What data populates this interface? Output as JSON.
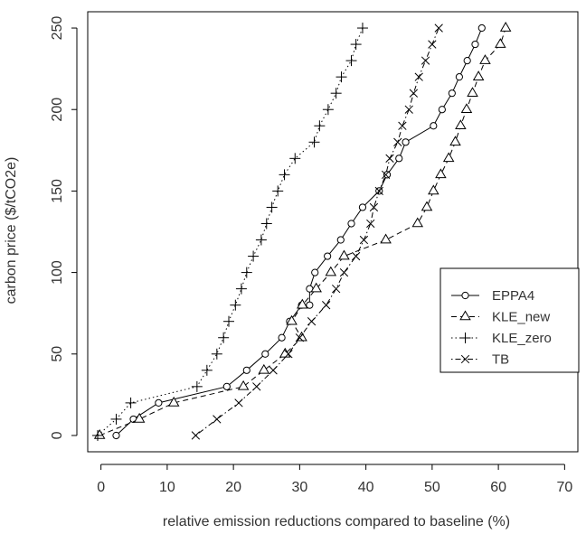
{
  "chart_data": {
    "type": "line",
    "title": "",
    "xlabel": "relative emission reductions compared to baseline (%)",
    "ylabel": "carbon price ($/tCO2e)",
    "xlim": [
      -2,
      72
    ],
    "ylim": [
      -10,
      260
    ],
    "x_ticks": [
      0,
      10,
      20,
      30,
      40,
      50,
      60,
      70
    ],
    "y_ticks": [
      0,
      50,
      100,
      150,
      200,
      250
    ],
    "grid": false,
    "legend_position": "right",
    "series": [
      {
        "name": "EPPA4",
        "marker": "circle",
        "dash": "solid",
        "points": [
          [
            2.3,
            0
          ],
          [
            4.9,
            10
          ],
          [
            8.7,
            20
          ],
          [
            19,
            30
          ],
          [
            22,
            40
          ],
          [
            24.8,
            50
          ],
          [
            27.3,
            60
          ],
          [
            28.5,
            70
          ],
          [
            30.3,
            80
          ],
          [
            31.5,
            80
          ],
          [
            31.5,
            90
          ],
          [
            32.3,
            100
          ],
          [
            34.2,
            110
          ],
          [
            36.2,
            120
          ],
          [
            37.8,
            130
          ],
          [
            39.5,
            140
          ],
          [
            42,
            150
          ],
          [
            43.2,
            160
          ],
          [
            45,
            170
          ],
          [
            46,
            180
          ],
          [
            50.2,
            190
          ],
          [
            51.5,
            200
          ],
          [
            53,
            210
          ],
          [
            54.1,
            220
          ],
          [
            55.3,
            230
          ],
          [
            56.5,
            240
          ],
          [
            57.5,
            250
          ]
        ]
      },
      {
        "name": "KLE_new",
        "marker": "triangle",
        "dash": "dashed",
        "points": [
          [
            -0.2,
            0
          ],
          [
            5.8,
            10
          ],
          [
            11,
            20
          ],
          [
            21.5,
            30
          ],
          [
            24.6,
            40
          ],
          [
            27.8,
            50
          ],
          [
            30.3,
            60
          ],
          [
            28.8,
            70
          ],
          [
            30.4,
            80
          ],
          [
            32.5,
            90
          ],
          [
            34.7,
            100
          ],
          [
            36.7,
            110
          ],
          [
            43,
            120
          ],
          [
            47.8,
            130
          ],
          [
            49.2,
            140
          ],
          [
            50.2,
            150
          ],
          [
            51.3,
            160
          ],
          [
            52.5,
            170
          ],
          [
            53.5,
            180
          ],
          [
            54.3,
            190
          ],
          [
            55.2,
            200
          ],
          [
            56.1,
            210
          ],
          [
            57,
            220
          ],
          [
            58,
            230
          ],
          [
            60.3,
            240
          ],
          [
            61.1,
            250
          ]
        ]
      },
      {
        "name": "KLE_zero",
        "marker": "plus",
        "dash": "dotted",
        "points": [
          [
            -0.5,
            0
          ],
          [
            2.3,
            10
          ],
          [
            4.5,
            20
          ],
          [
            14.5,
            30
          ],
          [
            16,
            40
          ],
          [
            17.5,
            50
          ],
          [
            18.5,
            60
          ],
          [
            19.3,
            70
          ],
          [
            20.3,
            80
          ],
          [
            21.2,
            90
          ],
          [
            22,
            100
          ],
          [
            23,
            110
          ],
          [
            24.2,
            120
          ],
          [
            25,
            130
          ],
          [
            25.8,
            140
          ],
          [
            26.7,
            150
          ],
          [
            27.7,
            160
          ],
          [
            29.3,
            170
          ],
          [
            32.2,
            180
          ],
          [
            33,
            190
          ],
          [
            34.3,
            200
          ],
          [
            35.5,
            210
          ],
          [
            36.3,
            220
          ],
          [
            37.8,
            230
          ],
          [
            38.5,
            240
          ],
          [
            39.5,
            250
          ]
        ]
      },
      {
        "name": "TB",
        "marker": "x",
        "dash": "dashdot",
        "points": [
          [
            14.3,
            0
          ],
          [
            17.5,
            10
          ],
          [
            20.8,
            20
          ],
          [
            23.5,
            30
          ],
          [
            26,
            40
          ],
          [
            28.3,
            50
          ],
          [
            30,
            60
          ],
          [
            31.8,
            70
          ],
          [
            34,
            80
          ],
          [
            35.5,
            90
          ],
          [
            36.7,
            100
          ],
          [
            38.5,
            110
          ],
          [
            39.7,
            120
          ],
          [
            40.7,
            130
          ],
          [
            41.2,
            140
          ],
          [
            42,
            150
          ],
          [
            43,
            160
          ],
          [
            43.6,
            170
          ],
          [
            44.8,
            180
          ],
          [
            45.5,
            190
          ],
          [
            46.5,
            200
          ],
          [
            47.2,
            210
          ],
          [
            48,
            220
          ],
          [
            49,
            230
          ],
          [
            50,
            240
          ],
          [
            51,
            250
          ]
        ]
      }
    ]
  }
}
